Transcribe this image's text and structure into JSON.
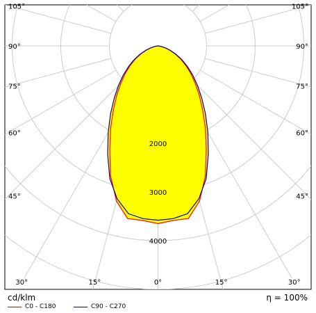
{
  "chart_data": {
    "type": "polar",
    "unit_label": "cd/klm",
    "efficiency_label": "η = 100%",
    "radial_ticks": [
      1000,
      2000,
      3000,
      4000
    ],
    "radial_tick_labels": [
      "2000",
      "3000",
      "4000"
    ],
    "radial_max": 5500,
    "angle_tick_labels": [
      "0°",
      "15°",
      "30°",
      "45°",
      "60°",
      "75°",
      "90°",
      "105°"
    ],
    "fill_color": "#ffff00",
    "series": [
      {
        "name": "C0 - C180",
        "color": "#ff0000",
        "angles": [
          0,
          5,
          10,
          15,
          20,
          25,
          30,
          35,
          40,
          45,
          50,
          55,
          60,
          65,
          70,
          75,
          80,
          85,
          90
        ],
        "values": [
          3650,
          3600,
          3600,
          3300,
          2850,
          2350,
          1950,
          1600,
          1320,
          1080,
          880,
          700,
          540,
          390,
          260,
          150,
          70,
          25,
          0
        ]
      },
      {
        "name": "C90 - C270",
        "color": "#0000aa",
        "angles": [
          0,
          5,
          10,
          15,
          20,
          25,
          30,
          35,
          40,
          45,
          50,
          55,
          60,
          65,
          70,
          75,
          80,
          85,
          90
        ],
        "values": [
          3580,
          3560,
          3500,
          3250,
          2900,
          2450,
          2050,
          1700,
          1400,
          1150,
          930,
          740,
          570,
          410,
          275,
          160,
          75,
          28,
          0
        ]
      }
    ]
  }
}
